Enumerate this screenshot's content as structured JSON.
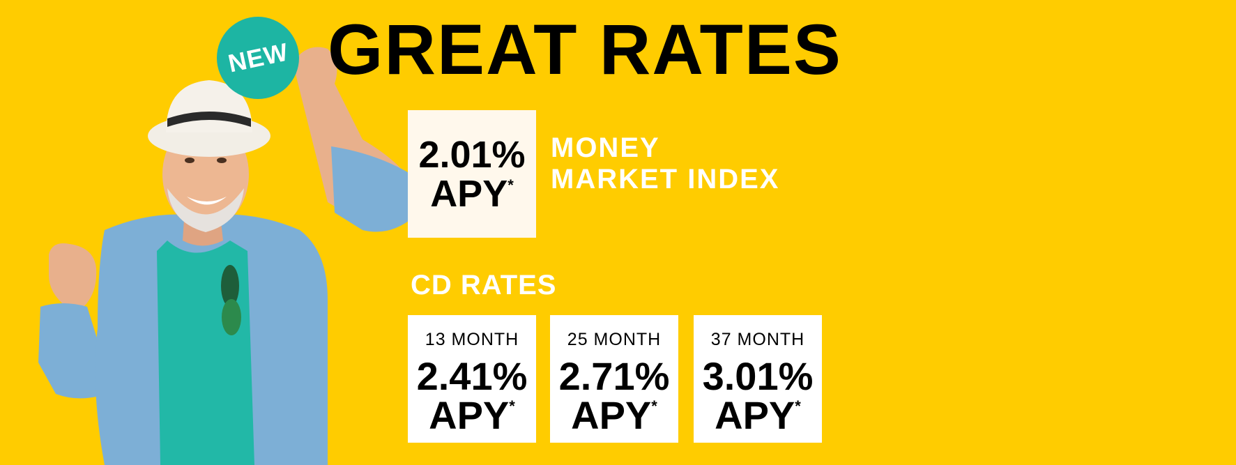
{
  "colors": {
    "background": "#FFCC00",
    "badge": "#1DB5A3",
    "headline": "#000000",
    "label": "#FFFFFF",
    "mm_box": "#FFF8EC",
    "cd_box": "#FFFFFF"
  },
  "badge": {
    "label": "NEW"
  },
  "headline": "GREAT RATES",
  "money_market": {
    "rate": "2.01%",
    "apy": "APY",
    "asterisk": "*",
    "label_line1": "MONEY",
    "label_line2": "MARKET INDEX"
  },
  "cd": {
    "heading": "CD RATES",
    "items": [
      {
        "term": "13 MONTH",
        "rate": "2.41%",
        "apy": "APY",
        "asterisk": "*"
      },
      {
        "term": "25 MONTH",
        "rate": "2.71%",
        "apy": "APY",
        "asterisk": "*"
      },
      {
        "term": "37 MONTH",
        "rate": "3.01%",
        "apy": "APY",
        "asterisk": "*"
      }
    ]
  },
  "illustration": {
    "icon": "smiling-man-icon"
  }
}
